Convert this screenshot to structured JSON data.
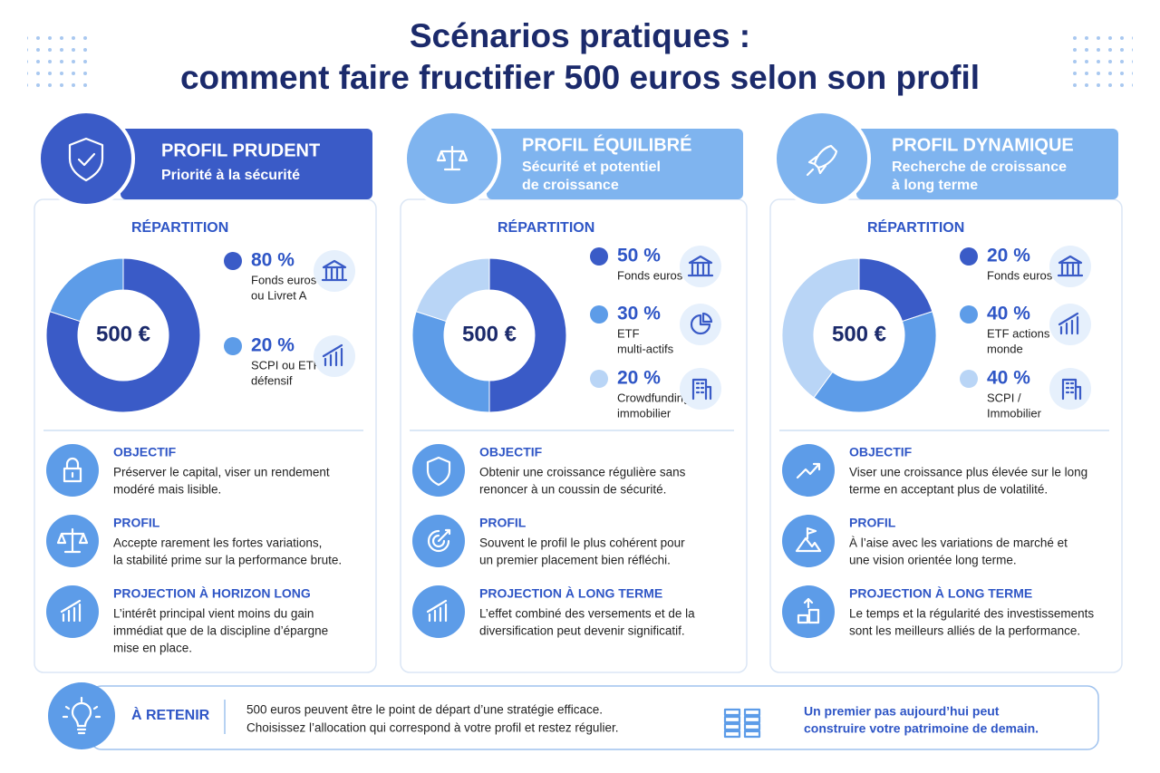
{
  "title": [
    "Scénarios pratiques :",
    "comment faire fructifier 500 euros selon son profil"
  ],
  "profiles": [
    {
      "name": "PROFIL PRUDENT",
      "subtitle": [
        "Priorité à la sécurité"
      ],
      "heading": "RÉPARTITION",
      "center": "500 €",
      "allocations": [
        {
          "value": 80,
          "value_label": "80 %",
          "label": [
            "Fonds euros",
            "ou Livret A"
          ]
        },
        {
          "value": 20,
          "value_label": "20 %",
          "label": [
            "SCPI ou ETF",
            "défensif"
          ]
        }
      ],
      "sections": [
        {
          "title": "OBJECTIF",
          "text": [
            "Préserver le capital, viser un rendement",
            "modéré mais lisible."
          ]
        },
        {
          "title": "PROFIL",
          "text": [
            "Accepte rarement les fortes variations,",
            "la stabilité prime sur la performance brute."
          ]
        },
        {
          "title": "PROJECTION À HORIZON LONG",
          "text": [
            "L’intérêt principal vient moins du gain",
            "immédiat que de la discipline d’épargne",
            "mise en place."
          ]
        }
      ]
    },
    {
      "name": "PROFIL ÉQUILIBRÉ",
      "subtitle": [
        "Sécurité et potentiel",
        "de croissance"
      ],
      "heading": "RÉPARTITION",
      "center": "500 €",
      "allocations": [
        {
          "value": 50,
          "value_label": "50 %",
          "label": [
            "Fonds euros"
          ]
        },
        {
          "value": 30,
          "value_label": "30 %",
          "label": [
            "ETF",
            "multi-actifs"
          ]
        },
        {
          "value": 20,
          "value_label": "20 %",
          "label": [
            "Crowdfunding",
            "immobilier"
          ]
        }
      ],
      "sections": [
        {
          "title": "OBJECTIF",
          "text": [
            "Obtenir une croissance régulière sans",
            "renoncer à un coussin de sécurité."
          ]
        },
        {
          "title": "PROFIL",
          "text": [
            "Souvent le profil le plus cohérent pour",
            "un premier placement bien réfléchi."
          ]
        },
        {
          "title": "PROJECTION À LONG TERME",
          "text": [
            "L’effet combiné des versements et de la",
            "diversification peut devenir significatif."
          ]
        }
      ]
    },
    {
      "name": "PROFIL DYNAMIQUE",
      "subtitle": [
        "Recherche de croissance",
        "à long terme"
      ],
      "heading": "RÉPARTITION",
      "center": "500 €",
      "allocations": [
        {
          "value": 20,
          "value_label": "20 %",
          "label": [
            "Fonds euros"
          ]
        },
        {
          "value": 40,
          "value_label": "40 %",
          "label": [
            "ETF actions",
            "monde"
          ]
        },
        {
          "value": 40,
          "value_label": "40 %",
          "label": [
            "SCPI /",
            "Immobilier"
          ]
        }
      ],
      "sections": [
        {
          "title": "OBJECTIF",
          "text": [
            "Viser une croissance plus élevée sur le long",
            "terme en acceptant plus de volatilité."
          ]
        },
        {
          "title": "PROFIL",
          "text": [
            "À l’aise avec les variations de marché et",
            "une vision orientée long terme."
          ]
        },
        {
          "title": "PROJECTION À LONG TERME",
          "text": [
            "Le temps et la régularité des investissements",
            "sont les meilleurs alliés de la performance."
          ]
        }
      ]
    }
  ],
  "footer": {
    "heading": "À RETENIR",
    "text": [
      "500 euros peuvent être le point de départ d’une stratégie efficace.",
      "Choisissez l’allocation qui correspond à votre profil et restez régulier."
    ],
    "note": [
      "Un premier pas aujourd’hui peut",
      "construire votre patrimoine de demain."
    ]
  }
}
